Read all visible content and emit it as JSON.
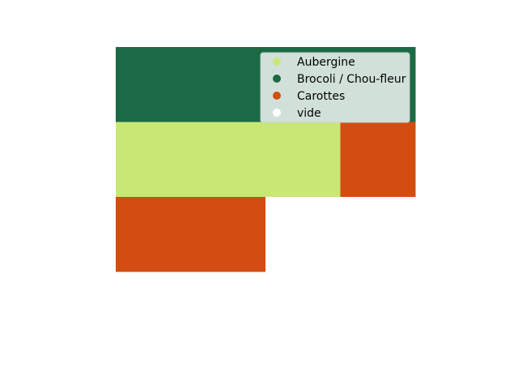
{
  "chart_data": {
    "type": "heatmap",
    "grid": {
      "columns": 8,
      "rows": 4,
      "cells": [
        [
          "Brocoli / Chou-fleur",
          "Brocoli / Chou-fleur",
          "Brocoli / Chou-fleur",
          "Brocoli / Chou-fleur",
          "Brocoli / Chou-fleur",
          "Brocoli / Chou-fleur",
          "Brocoli / Chou-fleur",
          "Brocoli / Chou-fleur"
        ],
        [
          "Aubergine",
          "Aubergine",
          "Aubergine",
          "Aubergine",
          "Aubergine",
          "Aubergine",
          "Carottes",
          "Carottes"
        ],
        [
          "Carottes",
          "Carottes",
          "Carottes",
          "Carottes",
          "vide",
          "vide",
          "vide",
          "vide"
        ],
        [
          "vide",
          "vide",
          "vide",
          "vide",
          "vide",
          "vide",
          "vide",
          "vide"
        ]
      ]
    },
    "legend": {
      "placement": "top-right",
      "items": [
        {
          "label": "Aubergine",
          "color": "#c9e774"
        },
        {
          "label": "Brocoli / Chou-fleur",
          "color": "#1b6a45"
        },
        {
          "label": "Carottes",
          "color": "#d44d10"
        },
        {
          "label": "vide",
          "color": "#ffffff"
        }
      ]
    },
    "title": "",
    "xlabel": "",
    "ylabel": "",
    "axes_visible": false
  }
}
